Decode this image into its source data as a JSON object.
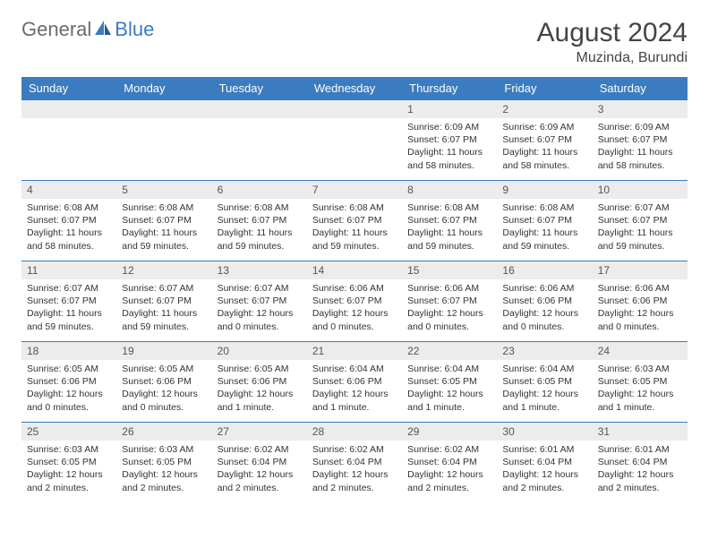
{
  "brand": {
    "part1": "General",
    "part2": "Blue"
  },
  "colors": {
    "accent": "#3b7bbf",
    "header_text": "#ffffff",
    "daynum_bg": "#ececec",
    "text": "#333333",
    "muted": "#6b6b6b",
    "page_bg": "#ffffff",
    "row_border": "#3b7bbf"
  },
  "title": "August 2024",
  "location": "Muzinda, Burundi",
  "weekdays": [
    "Sunday",
    "Monday",
    "Tuesday",
    "Wednesday",
    "Thursday",
    "Friday",
    "Saturday"
  ],
  "calendar": {
    "type": "table",
    "first_weekday_index": 4,
    "days_in_month": 31,
    "cells": [
      {
        "day": 1,
        "sunrise": "6:09 AM",
        "sunset": "6:07 PM",
        "daylight": "11 hours and 58 minutes."
      },
      {
        "day": 2,
        "sunrise": "6:09 AM",
        "sunset": "6:07 PM",
        "daylight": "11 hours and 58 minutes."
      },
      {
        "day": 3,
        "sunrise": "6:09 AM",
        "sunset": "6:07 PM",
        "daylight": "11 hours and 58 minutes."
      },
      {
        "day": 4,
        "sunrise": "6:08 AM",
        "sunset": "6:07 PM",
        "daylight": "11 hours and 58 minutes."
      },
      {
        "day": 5,
        "sunrise": "6:08 AM",
        "sunset": "6:07 PM",
        "daylight": "11 hours and 59 minutes."
      },
      {
        "day": 6,
        "sunrise": "6:08 AM",
        "sunset": "6:07 PM",
        "daylight": "11 hours and 59 minutes."
      },
      {
        "day": 7,
        "sunrise": "6:08 AM",
        "sunset": "6:07 PM",
        "daylight": "11 hours and 59 minutes."
      },
      {
        "day": 8,
        "sunrise": "6:08 AM",
        "sunset": "6:07 PM",
        "daylight": "11 hours and 59 minutes."
      },
      {
        "day": 9,
        "sunrise": "6:08 AM",
        "sunset": "6:07 PM",
        "daylight": "11 hours and 59 minutes."
      },
      {
        "day": 10,
        "sunrise": "6:07 AM",
        "sunset": "6:07 PM",
        "daylight": "11 hours and 59 minutes."
      },
      {
        "day": 11,
        "sunrise": "6:07 AM",
        "sunset": "6:07 PM",
        "daylight": "11 hours and 59 minutes."
      },
      {
        "day": 12,
        "sunrise": "6:07 AM",
        "sunset": "6:07 PM",
        "daylight": "11 hours and 59 minutes."
      },
      {
        "day": 13,
        "sunrise": "6:07 AM",
        "sunset": "6:07 PM",
        "daylight": "12 hours and 0 minutes."
      },
      {
        "day": 14,
        "sunrise": "6:06 AM",
        "sunset": "6:07 PM",
        "daylight": "12 hours and 0 minutes."
      },
      {
        "day": 15,
        "sunrise": "6:06 AM",
        "sunset": "6:07 PM",
        "daylight": "12 hours and 0 minutes."
      },
      {
        "day": 16,
        "sunrise": "6:06 AM",
        "sunset": "6:06 PM",
        "daylight": "12 hours and 0 minutes."
      },
      {
        "day": 17,
        "sunrise": "6:06 AM",
        "sunset": "6:06 PM",
        "daylight": "12 hours and 0 minutes."
      },
      {
        "day": 18,
        "sunrise": "6:05 AM",
        "sunset": "6:06 PM",
        "daylight": "12 hours and 0 minutes."
      },
      {
        "day": 19,
        "sunrise": "6:05 AM",
        "sunset": "6:06 PM",
        "daylight": "12 hours and 0 minutes."
      },
      {
        "day": 20,
        "sunrise": "6:05 AM",
        "sunset": "6:06 PM",
        "daylight": "12 hours and 1 minute."
      },
      {
        "day": 21,
        "sunrise": "6:04 AM",
        "sunset": "6:06 PM",
        "daylight": "12 hours and 1 minute."
      },
      {
        "day": 22,
        "sunrise": "6:04 AM",
        "sunset": "6:05 PM",
        "daylight": "12 hours and 1 minute."
      },
      {
        "day": 23,
        "sunrise": "6:04 AM",
        "sunset": "6:05 PM",
        "daylight": "12 hours and 1 minute."
      },
      {
        "day": 24,
        "sunrise": "6:03 AM",
        "sunset": "6:05 PM",
        "daylight": "12 hours and 1 minute."
      },
      {
        "day": 25,
        "sunrise": "6:03 AM",
        "sunset": "6:05 PM",
        "daylight": "12 hours and 2 minutes."
      },
      {
        "day": 26,
        "sunrise": "6:03 AM",
        "sunset": "6:05 PM",
        "daylight": "12 hours and 2 minutes."
      },
      {
        "day": 27,
        "sunrise": "6:02 AM",
        "sunset": "6:04 PM",
        "daylight": "12 hours and 2 minutes."
      },
      {
        "day": 28,
        "sunrise": "6:02 AM",
        "sunset": "6:04 PM",
        "daylight": "12 hours and 2 minutes."
      },
      {
        "day": 29,
        "sunrise": "6:02 AM",
        "sunset": "6:04 PM",
        "daylight": "12 hours and 2 minutes."
      },
      {
        "day": 30,
        "sunrise": "6:01 AM",
        "sunset": "6:04 PM",
        "daylight": "12 hours and 2 minutes."
      },
      {
        "day": 31,
        "sunrise": "6:01 AM",
        "sunset": "6:04 PM",
        "daylight": "12 hours and 2 minutes."
      }
    ],
    "labels": {
      "sunrise": "Sunrise:",
      "sunset": "Sunset:",
      "daylight": "Daylight:"
    }
  }
}
